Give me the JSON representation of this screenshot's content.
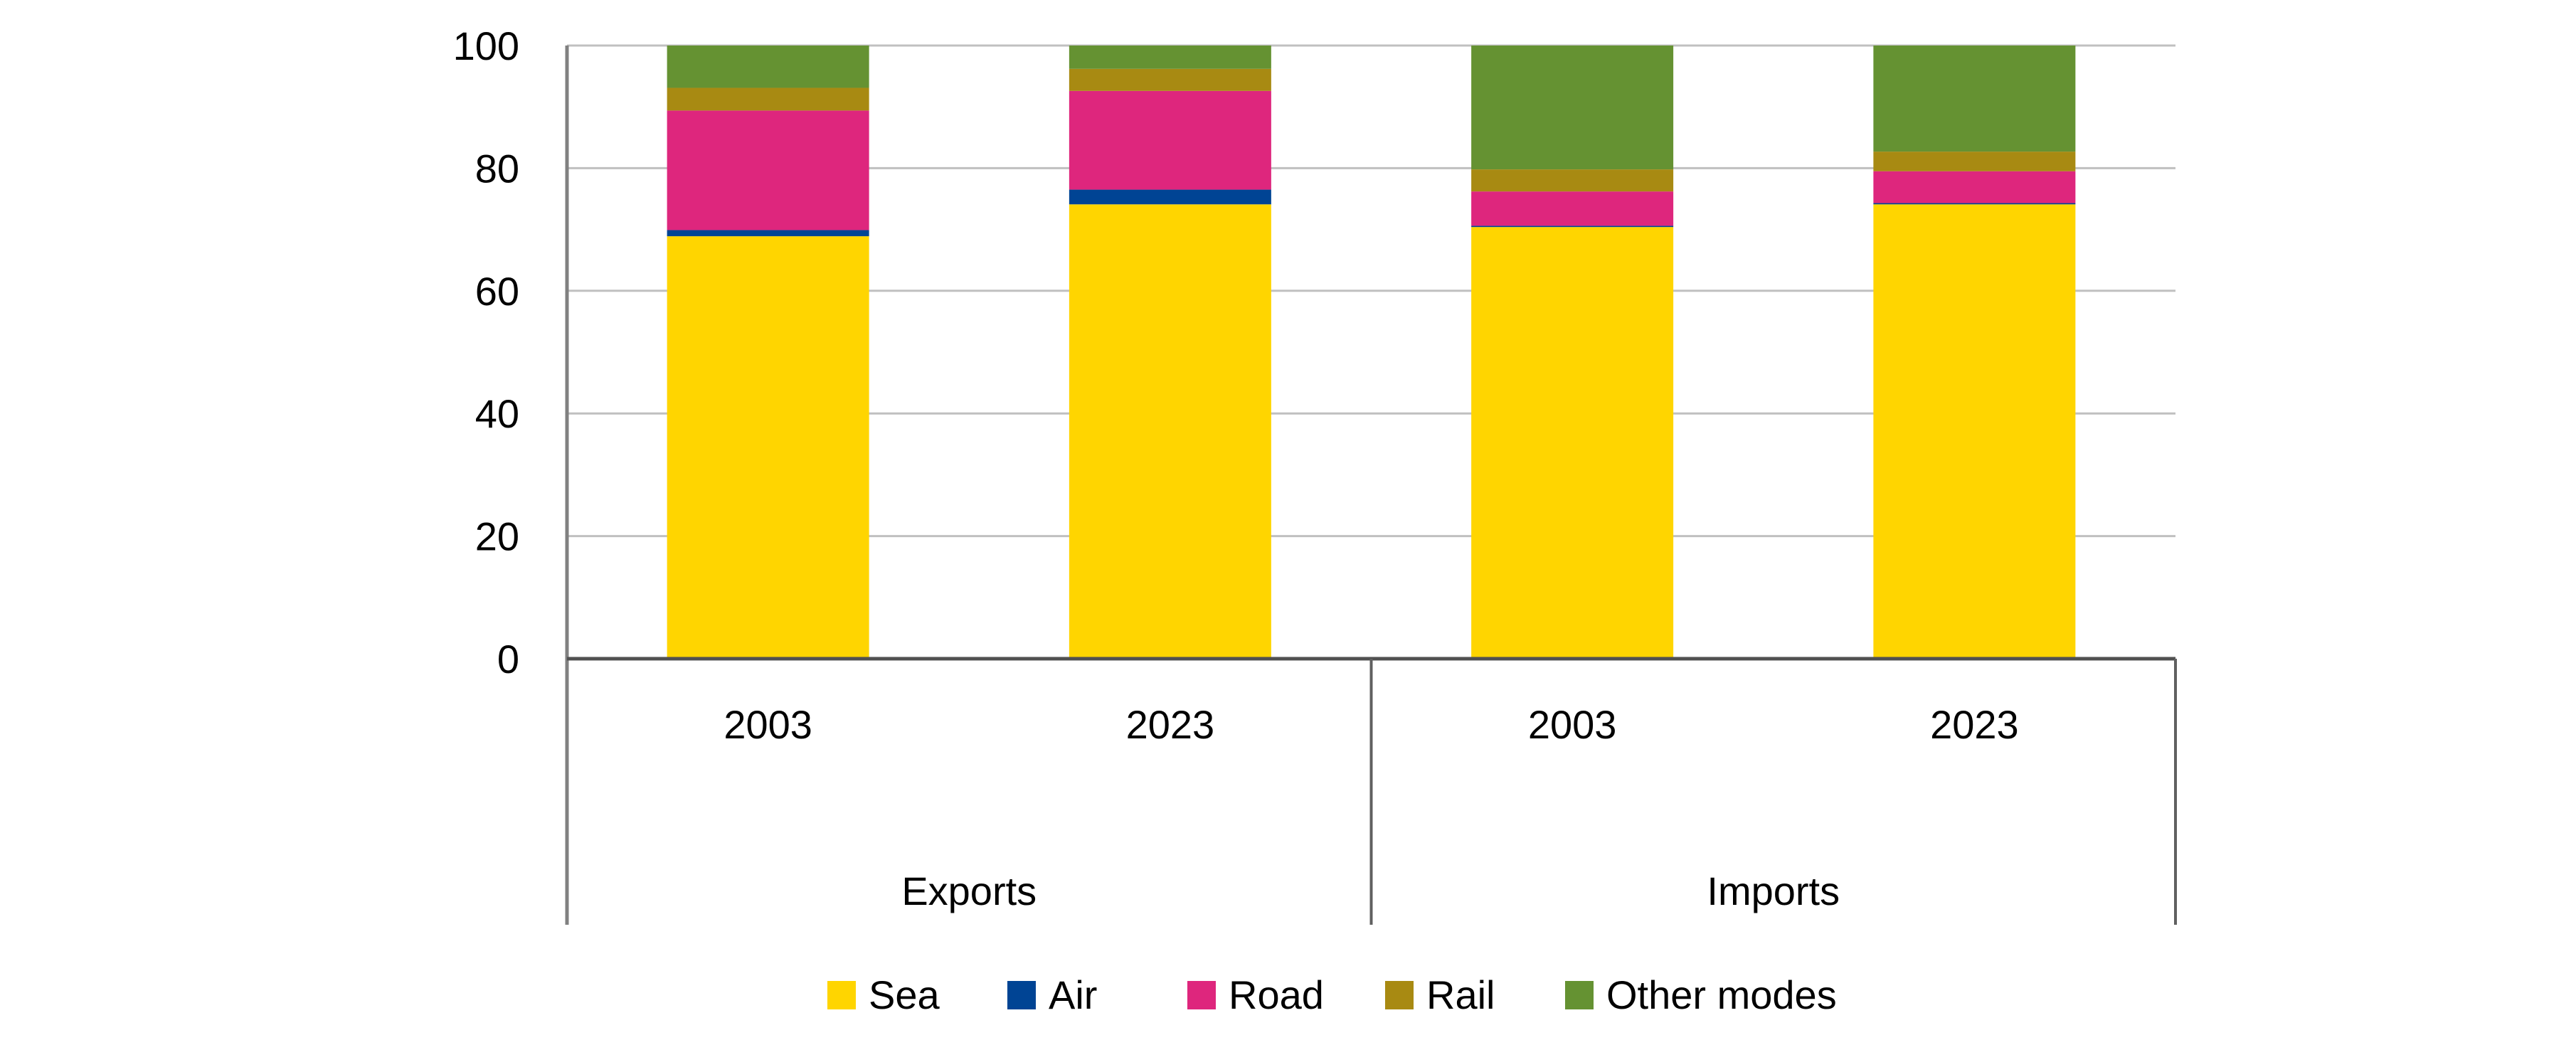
{
  "chart_data": {
    "type": "bar",
    "stacked": true,
    "title": "",
    "xlabel": "",
    "ylabel": "",
    "ylim": [
      0,
      100
    ],
    "yticks": [
      0,
      20,
      40,
      60,
      80,
      100
    ],
    "grid": true,
    "legend_position": "bottom",
    "groups": [
      {
        "label": "Exports",
        "categories": [
          "2003",
          "2023"
        ]
      },
      {
        "label": "Imports",
        "categories": [
          "2003",
          "2023"
        ]
      }
    ],
    "categories": [
      "Exports 2003",
      "Exports 2023",
      "Imports 2003",
      "Imports 2023"
    ],
    "category_labels": [
      "2003",
      "2023",
      "2003",
      "2023"
    ],
    "series": [
      {
        "name": "Sea",
        "color": "#FFD500",
        "values": [
          68.9,
          74.1,
          70.4,
          74.1
        ]
      },
      {
        "name": "Air",
        "color": "#004494",
        "values": [
          1.0,
          2.4,
          0.2,
          0.2
        ]
      },
      {
        "name": "Road",
        "color": "#DE267D",
        "values": [
          19.5,
          16.1,
          5.6,
          5.2
        ]
      },
      {
        "name": "Rail",
        "color": "#A88A12",
        "values": [
          3.7,
          3.6,
          3.6,
          3.2
        ]
      },
      {
        "name": "Other modes",
        "color": "#659232",
        "values": [
          6.9,
          3.8,
          20.2,
          17.3
        ]
      }
    ]
  }
}
